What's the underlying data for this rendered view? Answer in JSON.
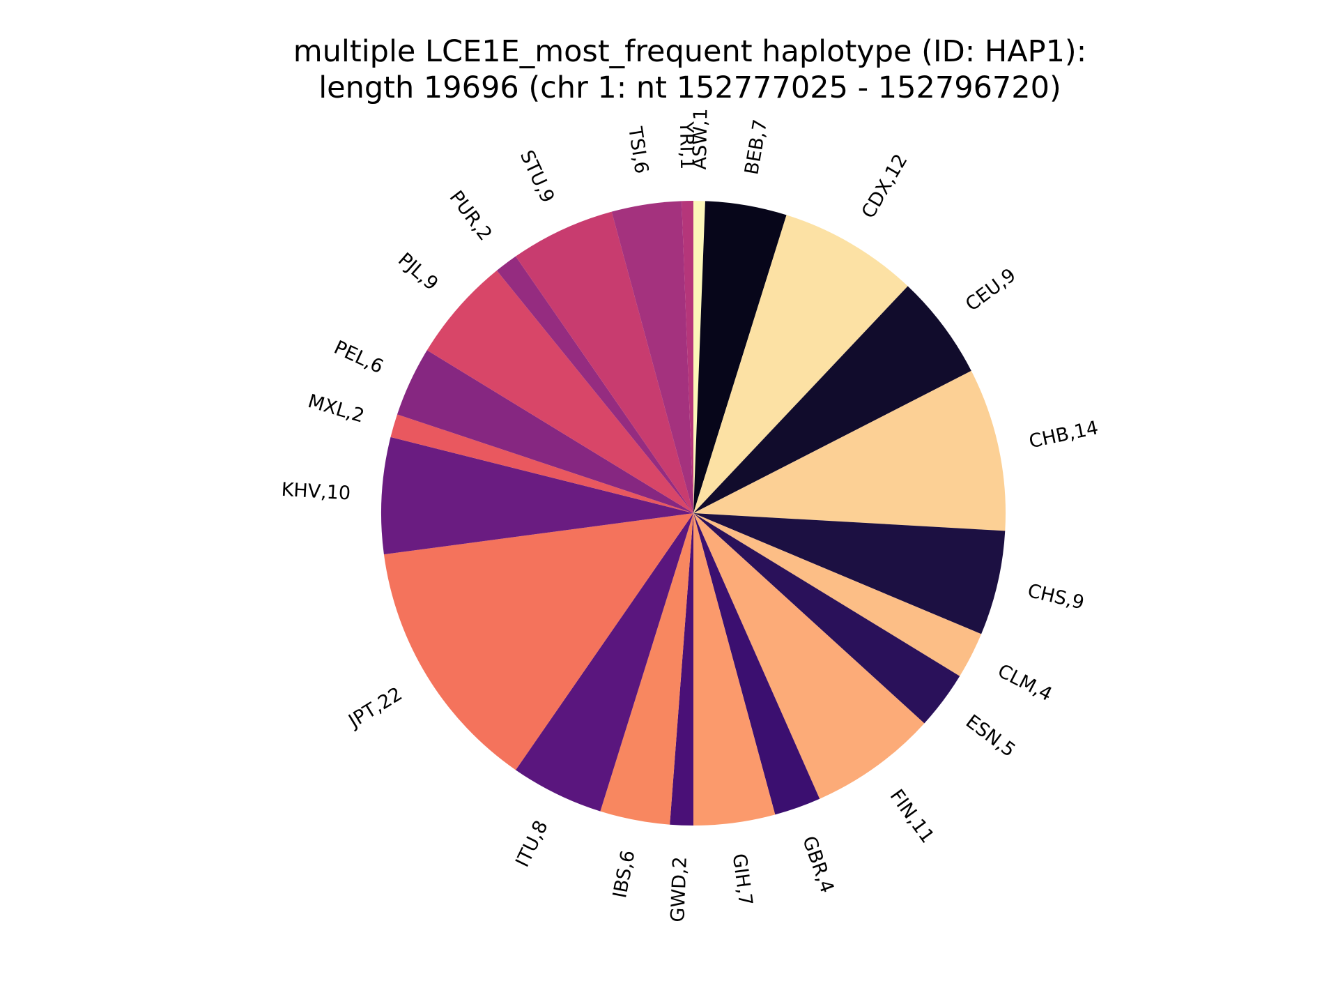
{
  "chart_data": {
    "type": "pie",
    "title_line1": "multiple LCE1E_most_frequent haplotype (ID: HAP1):",
    "title_line2": "length 19696 (chr 1: nt 152777025 - 152796720)",
    "start_angle_deg": 90,
    "direction": "clockwise",
    "slices": [
      {
        "label": "ASW,1",
        "name": "ASW",
        "value": 1,
        "color": "#fcf7b9"
      },
      {
        "label": "BEB,7",
        "name": "BEB",
        "value": 7,
        "color": "#07061a"
      },
      {
        "label": "CDX,12",
        "name": "CDX",
        "value": 12,
        "color": "#fce1a4"
      },
      {
        "label": "CEU,9",
        "name": "CEU",
        "value": 9,
        "color": "#110c2c"
      },
      {
        "label": "CHB,14",
        "name": "CHB",
        "value": 14,
        "color": "#fcd095"
      },
      {
        "label": "CHS,9",
        "name": "CHS",
        "value": 9,
        "color": "#1c1042"
      },
      {
        "label": "CLM,4",
        "name": "CLM",
        "value": 4,
        "color": "#fcbe86"
      },
      {
        "label": "ESN,5",
        "name": "ESN",
        "value": 5,
        "color": "#2a115a"
      },
      {
        "label": "FIN,11",
        "name": "FIN",
        "value": 11,
        "color": "#fcab78"
      },
      {
        "label": "GBR,4",
        "name": "GBR",
        "value": 4,
        "color": "#3b0f70"
      },
      {
        "label": "GIH,7",
        "name": "GIH",
        "value": 7,
        "color": "#fb9a6c"
      },
      {
        "label": "GWD,2",
        "name": "GWD",
        "value": 2,
        "color": "#4a1077"
      },
      {
        "label": "IBS,6",
        "name": "IBS",
        "value": 6,
        "color": "#f88760"
      },
      {
        "label": "ITU,8",
        "name": "ITU",
        "value": 8,
        "color": "#5a167e"
      },
      {
        "label": "JPT,22",
        "name": "JPT",
        "value": 22,
        "color": "#f4735c"
      },
      {
        "label": "KHV,10",
        "name": "KHV",
        "value": 10,
        "color": "#6a1c81"
      },
      {
        "label": "MXL,2",
        "name": "MXL",
        "value": 2,
        "color": "#e9585f"
      },
      {
        "label": "PEL,6",
        "name": "PEL",
        "value": 6,
        "color": "#862781"
      },
      {
        "label": "PJL,9",
        "name": "PJL",
        "value": 9,
        "color": "#d84668"
      },
      {
        "label": "PUR,2",
        "name": "PUR",
        "value": 2,
        "color": "#952c80"
      },
      {
        "label": "STU,9",
        "name": "STU",
        "value": 9,
        "color": "#c83c6f"
      },
      {
        "label": "TSI,6",
        "name": "TSI",
        "value": 6,
        "color": "#a4327e"
      },
      {
        "label": "YRI,1",
        "name": "YRI",
        "value": 1,
        "color": "#b5367a"
      }
    ]
  }
}
